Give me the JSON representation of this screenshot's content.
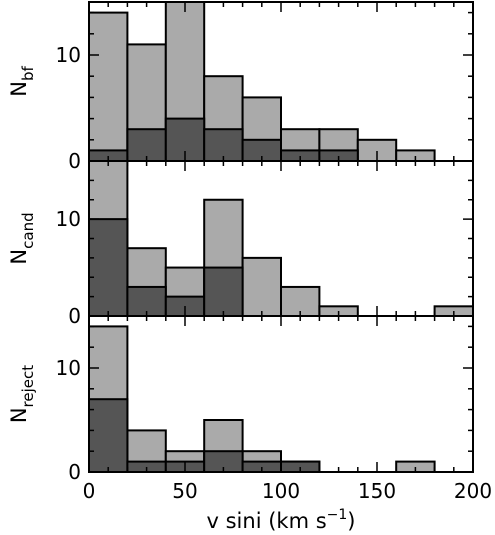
{
  "chart_data": [
    {
      "type": "bar",
      "panel": "top",
      "ylabel_main": "N",
      "ylabel_sub": "bf",
      "bin_edges": [
        0,
        20,
        40,
        60,
        80,
        100,
        120,
        140,
        160,
        180,
        200
      ],
      "ylim": [
        0,
        15
      ],
      "yticks": [
        0,
        10
      ],
      "series": [
        {
          "color": "#aaaaaa",
          "values": [
            14,
            11,
            15,
            8,
            6,
            3,
            3,
            2,
            1,
            0
          ]
        },
        {
          "color": "#555555",
          "values": [
            1,
            3,
            4,
            3,
            2,
            1,
            1,
            0,
            0,
            0
          ]
        }
      ]
    },
    {
      "type": "bar",
      "panel": "middle",
      "ylabel_main": "N",
      "ylabel_sub": "cand",
      "bin_edges": [
        0,
        20,
        40,
        60,
        80,
        100,
        120,
        140,
        160,
        180,
        200
      ],
      "ylim": [
        0,
        16
      ],
      "yticks": [
        0,
        10
      ],
      "series": [
        {
          "color": "#aaaaaa",
          "values": [
            16,
            7,
            5,
            12,
            6,
            3,
            1,
            0,
            0,
            1
          ]
        },
        {
          "color": "#555555",
          "values": [
            10,
            3,
            2,
            5,
            0,
            0,
            0,
            0,
            0,
            0
          ]
        }
      ]
    },
    {
      "type": "bar",
      "panel": "bottom",
      "ylabel_main": "N",
      "ylabel_sub": "reject",
      "bin_edges": [
        0,
        20,
        40,
        60,
        80,
        100,
        120,
        140,
        160,
        180,
        200
      ],
      "ylim": [
        0,
        15
      ],
      "yticks": [
        0,
        10
      ],
      "series": [
        {
          "color": "#aaaaaa",
          "values": [
            14,
            4,
            2,
            5,
            2,
            1,
            0,
            0,
            1,
            0
          ]
        },
        {
          "color": "#555555",
          "values": [
            7,
            1,
            1,
            2,
            1,
            1,
            0,
            0,
            0,
            0
          ]
        }
      ]
    }
  ],
  "xaxis": {
    "xlim": [
      0,
      200
    ],
    "ticks": [
      "0",
      "50",
      "100",
      "150",
      "200"
    ],
    "tick_values": [
      0,
      50,
      100,
      150,
      200
    ],
    "label_main": "v sini  (km s",
    "label_sup": "−1",
    "label_end": ")"
  }
}
